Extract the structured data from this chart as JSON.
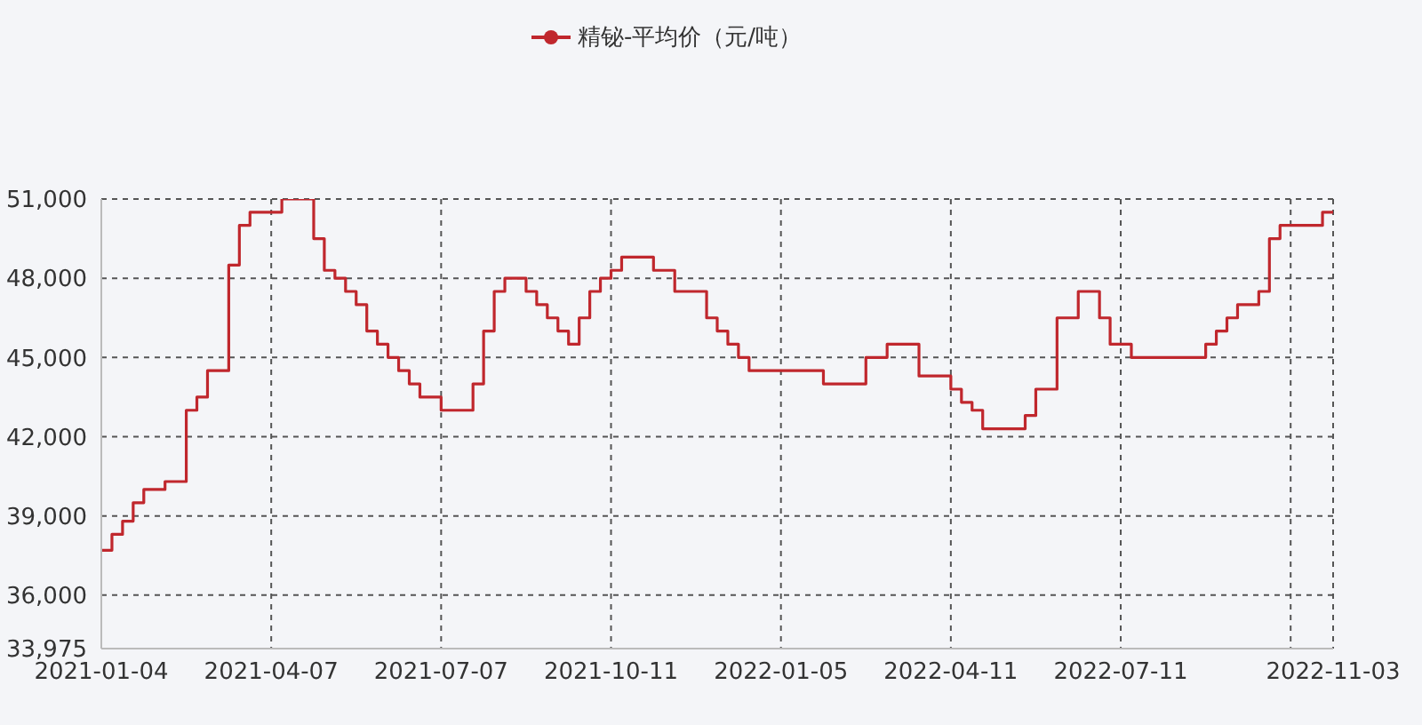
{
  "chart_data": {
    "type": "step",
    "categories": [
      "2021-01-04",
      null,
      null,
      null,
      null,
      null,
      null,
      null,
      null,
      null,
      null,
      null,
      null,
      null,
      null,
      null,
      "2021-04-07",
      null,
      null,
      null,
      null,
      null,
      null,
      null,
      null,
      null,
      null,
      null,
      null,
      null,
      null,
      null,
      "2021-07-07",
      null,
      null,
      null,
      null,
      null,
      null,
      null,
      null,
      null,
      null,
      null,
      null,
      null,
      null,
      null,
      "2021-10-11",
      null,
      null,
      null,
      null,
      null,
      null,
      null,
      null,
      null,
      null,
      null,
      null,
      null,
      null,
      null,
      "2022-01-05",
      null,
      null,
      null,
      null,
      null,
      null,
      null,
      null,
      null,
      null,
      null,
      null,
      null,
      null,
      null,
      "2022-04-11",
      null,
      null,
      null,
      null,
      null,
      null,
      null,
      null,
      null,
      null,
      null,
      null,
      null,
      null,
      null,
      "2022-07-11",
      null,
      null,
      null,
      null,
      null,
      null,
      null,
      null,
      null,
      null,
      null,
      null,
      null,
      null,
      null,
      null,
      null,
      null,
      null,
      "2022-11-03"
    ],
    "series": [
      {
        "name": "精铋-平均价（元/吨）",
        "color": "#c0272d",
        "values": [
          37700,
          38300,
          38800,
          39500,
          40000,
          40000,
          40300,
          40300,
          43000,
          43500,
          44500,
          44500,
          48500,
          50000,
          50500,
          50500,
          50500,
          51000,
          51000,
          51000,
          49500,
          48300,
          48000,
          47500,
          47000,
          46000,
          45500,
          45000,
          44500,
          44000,
          43500,
          43500,
          43000,
          43000,
          43000,
          44000,
          46000,
          47500,
          48000,
          48000,
          47500,
          47000,
          46500,
          46000,
          45500,
          46500,
          47500,
          48000,
          48300,
          48800,
          48800,
          48800,
          48300,
          48300,
          47500,
          47500,
          47500,
          46500,
          46000,
          45500,
          45000,
          44500,
          44500,
          44500,
          44500,
          44500,
          44500,
          44500,
          44000,
          44000,
          44000,
          44000,
          45000,
          45000,
          45500,
          45500,
          45500,
          44300,
          44300,
          44300,
          43800,
          43300,
          43000,
          42300,
          42300,
          42300,
          42300,
          42800,
          43800,
          43800,
          46500,
          46500,
          47500,
          47500,
          46500,
          45500,
          45500,
          45000,
          45000,
          45000,
          45000,
          45000,
          45000,
          45000,
          45500,
          46000,
          46500,
          47000,
          47000,
          47500,
          49500,
          50000,
          50000,
          50000,
          50000,
          50500,
          50500
        ]
      }
    ],
    "ylim": [
      33975,
      51000
    ],
    "yticks": [
      {
        "value": 33975,
        "label": "33,975"
      },
      {
        "value": 36000,
        "label": "36,000"
      },
      {
        "value": 39000,
        "label": "39,000"
      },
      {
        "value": 42000,
        "label": "42,000"
      },
      {
        "value": 45000,
        "label": "45,000"
      },
      {
        "value": 48000,
        "label": "48,000"
      },
      {
        "value": 51000,
        "label": "51,000"
      }
    ],
    "grid": true,
    "legend": "top"
  }
}
